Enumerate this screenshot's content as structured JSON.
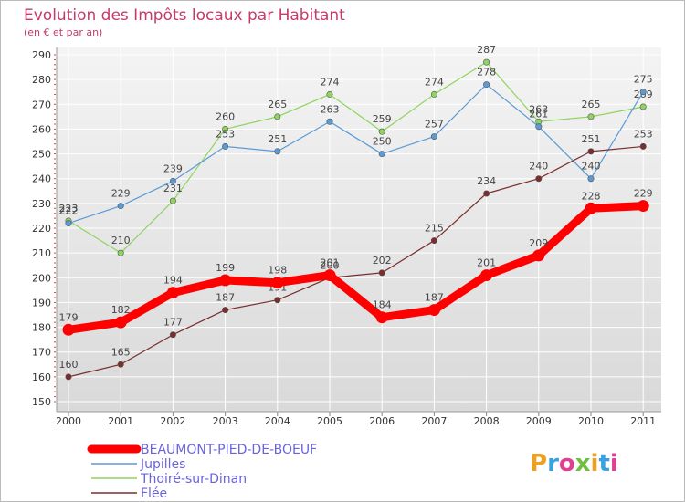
{
  "chart_data": {
    "type": "line",
    "title": "Evolution des Impôts locaux par Habitant",
    "subtitle": "(en € et par an)",
    "x": [
      "2000",
      "2001",
      "2002",
      "2003",
      "2004",
      "2005",
      "2006",
      "2007",
      "2008",
      "2009",
      "2010",
      "2011"
    ],
    "ylim": [
      150,
      290
    ],
    "yticks": [
      150,
      160,
      170,
      180,
      190,
      200,
      210,
      220,
      230,
      240,
      250,
      260,
      270,
      280,
      290
    ],
    "grid": true,
    "legend_position": "bottom-left",
    "series": [
      {
        "name": "BEAUMONT-PIED-DE-BOEUF",
        "color": "#ff0000",
        "values": [
          179,
          182,
          194,
          199,
          198,
          201,
          184,
          187,
          201,
          209,
          228,
          229
        ]
      },
      {
        "name": "Jupilles",
        "color": "#5a9bd5",
        "values": [
          222,
          229,
          239,
          253,
          251,
          263,
          250,
          257,
          278,
          261,
          240,
          275
        ]
      },
      {
        "name": "Thoiré-sur-Dinan",
        "color": "#8ed45e",
        "values": [
          223,
          210,
          231,
          260,
          265,
          274,
          259,
          274,
          287,
          263,
          265,
          269
        ]
      },
      {
        "name": "Flée",
        "color": "#7a2e2e",
        "values": [
          160,
          165,
          177,
          187,
          191,
          200,
          202,
          215,
          234,
          240,
          251,
          253
        ]
      }
    ]
  },
  "logo": {
    "text": "Proxiti"
  }
}
